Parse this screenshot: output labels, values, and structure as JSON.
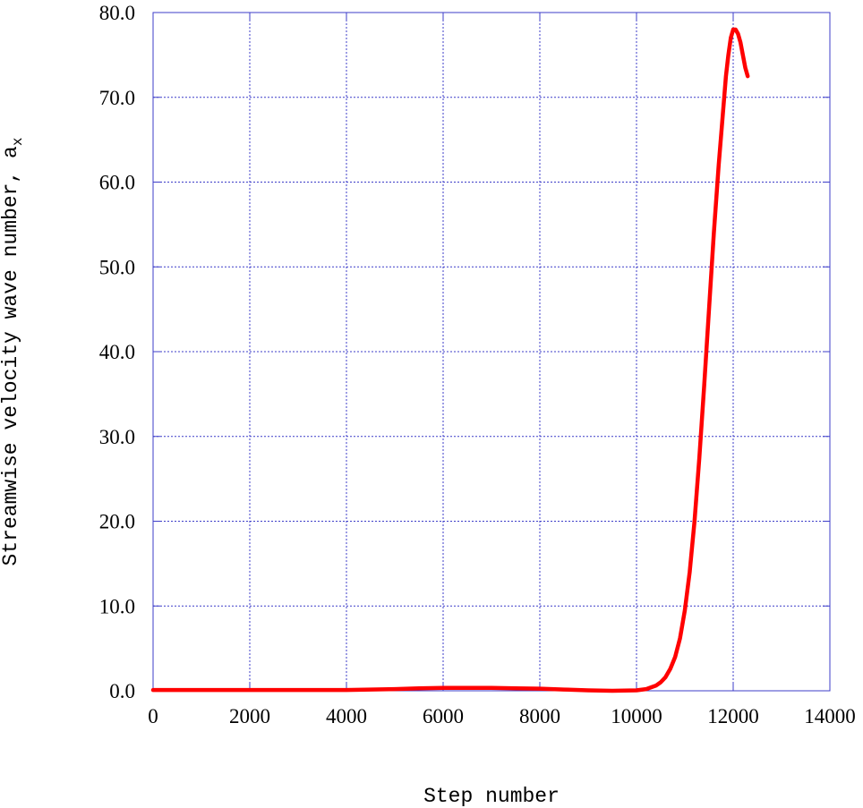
{
  "chart_data": {
    "type": "line",
    "xlabel": "Step number",
    "ylabel": "Streamwise velocity wave number, a",
    "ylabel_subscript": "x",
    "xlim": [
      0,
      14000
    ],
    "ylim": [
      0,
      80
    ],
    "x_ticks": [
      0,
      2000,
      4000,
      6000,
      8000,
      10000,
      12000,
      14000
    ],
    "x_tick_labels": [
      "0",
      "2000",
      "4000",
      "6000",
      "8000",
      "10000",
      "12000",
      "14000"
    ],
    "y_ticks": [
      0,
      10,
      20,
      30,
      40,
      50,
      60,
      70,
      80
    ],
    "y_tick_labels": [
      "0.0",
      "10.0",
      "20.0",
      "30.0",
      "40.0",
      "50.0",
      "60.0",
      "70.0",
      "80.0"
    ],
    "grid": true,
    "series": [
      {
        "color": "#ff0000",
        "x": [
          0,
          1000,
          2000,
          3000,
          4000,
          5000,
          5500,
          6000,
          6500,
          7000,
          7500,
          8000,
          8500,
          9000,
          9500,
          10000,
          10200,
          10400,
          10500,
          10600,
          10700,
          10800,
          10900,
          11000,
          11100,
          11200,
          11300,
          11400,
          11500,
          11600,
          11700,
          11800,
          11850,
          11900,
          11950,
          12000,
          12050,
          12100,
          12150,
          12200,
          12250,
          12300
        ],
        "y": [
          0.1,
          0.1,
          0.1,
          0.1,
          0.1,
          0.2,
          0.3,
          0.35,
          0.35,
          0.35,
          0.3,
          0.25,
          0.15,
          0.05,
          0.0,
          0.05,
          0.2,
          0.6,
          1.0,
          1.6,
          2.6,
          4.0,
          6.2,
          9.5,
          14.0,
          20.0,
          27.5,
          36.0,
          45.0,
          54.0,
          62.0,
          69.0,
          72.5,
          75.0,
          77.0,
          78.0,
          78.0,
          77.5,
          76.5,
          75.0,
          73.5,
          72.5
        ]
      }
    ]
  }
}
